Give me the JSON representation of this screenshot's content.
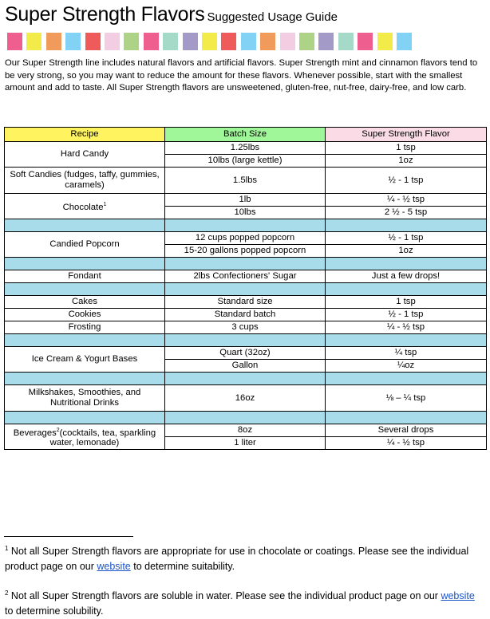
{
  "title": {
    "main": "Super Strength Flavors",
    "sub": "Suggested Usage Guide"
  },
  "swatch_colors": [
    "#ee5f8f",
    "#f3eb4a",
    "#f09b5b",
    "#82d2f5",
    "#ef5b5b",
    "#f3cde2",
    "#acd386",
    "#ee5f8f",
    "#a5dac9",
    "#a49ac8",
    "#f3eb4a",
    "#ef5b5b",
    "#82d2f5",
    "#f09b5b",
    "#f3cde2",
    "#acd386",
    "#a49ac8",
    "#a5dac9",
    "#ee5f8f",
    "#f3eb4a",
    "#82d2f5"
  ],
  "intro": "Our Super Strength line includes natural flavors and artificial flavors. Super Strength mint and cinnamon flavors tend to be very strong, so you may want to reduce the amount for these flavors. Whenever possible, start with the smallest amount and add to taste. All Super Strength flavors are unsweetened, gluten-free, nut-free, dairy-free, and low carb.",
  "table": {
    "headers": [
      "Recipe",
      "Batch Size",
      "Super Strength Flavor"
    ],
    "header_colors": [
      "#fff45f",
      "#a0f79a",
      "#fadbe6"
    ],
    "separator_color": "#a8dcea",
    "groups": [
      {
        "items": [
          {
            "recipe": "Hard Candy",
            "rows": [
              {
                "batch": "1.25lbs",
                "flavor": "1 tsp"
              },
              {
                "batch": "10lbs (large kettle)",
                "flavor": "1oz"
              }
            ]
          },
          {
            "recipe": "Soft Candies (fudges, taffy, gummies, caramels)",
            "rows": [
              {
                "batch": "1.5lbs",
                "flavor": "½ - 1 tsp"
              }
            ]
          },
          {
            "recipe": "Chocolate",
            "sup": "1",
            "rows": [
              {
                "batch": "1lb",
                "flavor": "¼ - ½ tsp"
              },
              {
                "batch": "10lbs",
                "flavor": "2 ½ - 5 tsp"
              }
            ]
          }
        ]
      },
      {
        "items": [
          {
            "recipe": "Candied Popcorn",
            "rows": [
              {
                "batch": "12 cups popped popcorn",
                "flavor": "½ - 1 tsp"
              },
              {
                "batch": "15-20 gallons popped popcorn",
                "flavor": "1oz"
              }
            ]
          }
        ]
      },
      {
        "items": [
          {
            "recipe": "Fondant",
            "rows": [
              {
                "batch": "2lbs Confectioners' Sugar",
                "flavor": "Just a few drops!"
              }
            ]
          }
        ]
      },
      {
        "items": [
          {
            "recipe": "Cakes",
            "rows": [
              {
                "batch": "Standard size",
                "flavor": "1 tsp"
              }
            ]
          },
          {
            "recipe": "Cookies",
            "rows": [
              {
                "batch": "Standard batch",
                "flavor": "½ - 1 tsp"
              }
            ]
          },
          {
            "recipe": "Frosting",
            "rows": [
              {
                "batch": "3 cups",
                "flavor": "¼ - ½ tsp"
              }
            ]
          }
        ]
      },
      {
        "items": [
          {
            "recipe": "Ice Cream & Yogurt Bases",
            "rows": [
              {
                "batch": "Quart (32oz)",
                "flavor": "¼ tsp"
              },
              {
                "batch": "Gallon",
                "flavor": "¼oz"
              }
            ]
          }
        ]
      },
      {
        "items": [
          {
            "recipe": "Milkshakes, Smoothies, and Nutritional Drinks",
            "rows": [
              {
                "batch": "16oz",
                "flavor": "⅛ – ¼ tsp"
              }
            ]
          }
        ]
      },
      {
        "items": [
          {
            "recipe": "Beverages",
            "sup": "2",
            "recipe_after": "(cocktails, tea, sparkling water, lemonade)",
            "rows": [
              {
                "batch": "8oz",
                "flavor": "Several drops"
              },
              {
                "batch": "1 liter",
                "flavor": "¼ - ½ tsp"
              }
            ]
          }
        ]
      }
    ]
  },
  "footnotes": [
    {
      "mark": "1",
      "before": " Not all Super Strength flavors are appropriate for use in chocolate or coatings. Please see the individual product page on our ",
      "link": "website",
      "after": " to determine suitability."
    },
    {
      "mark": "2",
      "before": " Not all Super Strength flavors are soluble in water. Please see the individual product page on our ",
      "link": "website",
      "after": " to determine solubility."
    }
  ]
}
